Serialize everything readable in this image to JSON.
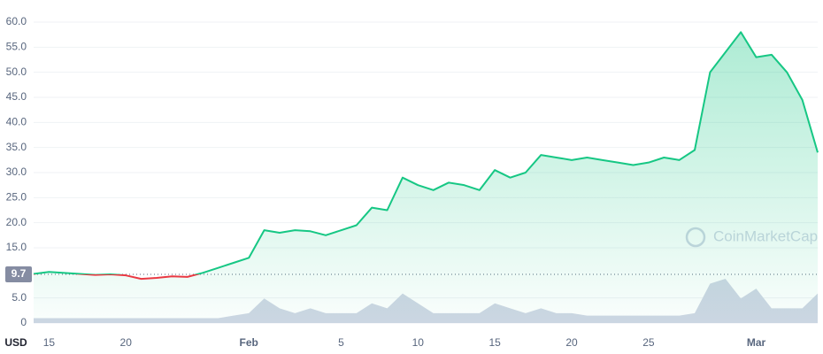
{
  "chart_data": {
    "type": "line",
    "watermark": "CoinMarketCap",
    "currency_label": "USD",
    "categories": [
      null,
      "15",
      null,
      null,
      null,
      null,
      "20",
      null,
      null,
      null,
      null,
      null,
      null,
      null,
      "Feb",
      null,
      null,
      null,
      null,
      null,
      "5",
      null,
      null,
      null,
      null,
      "10",
      null,
      null,
      null,
      null,
      "15",
      null,
      null,
      null,
      null,
      "20",
      null,
      null,
      null,
      null,
      "25",
      null,
      null,
      null,
      null,
      null,
      null,
      "Mar",
      null,
      null,
      null,
      null
    ],
    "series": [
      {
        "name": "Price",
        "color": "#16c784",
        "color_below": "#ea3943",
        "values": [
          9.8,
          10.2,
          10.0,
          9.8,
          9.6,
          9.7,
          9.5,
          8.8,
          9.0,
          9.3,
          9.2,
          10.0,
          11.0,
          12.0,
          13.0,
          18.5,
          18.0,
          18.5,
          18.3,
          17.5,
          18.5,
          19.5,
          23.0,
          22.5,
          29.0,
          27.5,
          26.5,
          28.0,
          27.5,
          26.5,
          30.5,
          29.0,
          30.0,
          33.5,
          33.0,
          32.5,
          33.0,
          32.5,
          32.0,
          31.5,
          32.0,
          33.0,
          32.5,
          34.5,
          50.0,
          54.0,
          58.0,
          53.0,
          53.5,
          50.0,
          44.5,
          34.0
        ]
      },
      {
        "name": "Volume",
        "color": "#cfd6e4",
        "values": [
          1,
          1,
          1,
          1,
          1,
          1,
          1,
          1,
          1,
          1,
          1,
          1,
          1,
          1.5,
          2,
          5,
          3,
          2,
          3,
          2,
          2,
          2,
          4,
          3,
          6,
          4,
          2,
          2,
          2,
          2,
          4,
          3,
          2,
          3,
          2,
          2,
          1.5,
          1.5,
          1.5,
          1.5,
          1.5,
          1.5,
          1.5,
          2,
          8,
          9,
          5,
          7,
          3,
          3,
          3,
          6
        ]
      }
    ],
    "reference": {
      "value": 9.7,
      "label": "9.7"
    },
    "ylim": [
      0,
      60
    ],
    "yticks": [
      0,
      {
        "value": 5,
        "label": "5.0"
      },
      {
        "value": 15,
        "label": "15.0"
      },
      {
        "value": 20,
        "label": "20.0"
      },
      {
        "value": 25,
        "label": "25.0"
      },
      {
        "value": 30,
        "label": "30.0"
      },
      {
        "value": 35,
        "label": "35.0"
      },
      {
        "value": 40,
        "label": "40.0"
      },
      {
        "value": 45,
        "label": "45.0"
      },
      {
        "value": 50,
        "label": "50.0"
      },
      {
        "value": 55,
        "label": "55.0"
      },
      {
        "value": 60,
        "label": "60.0"
      }
    ],
    "grid": true
  }
}
